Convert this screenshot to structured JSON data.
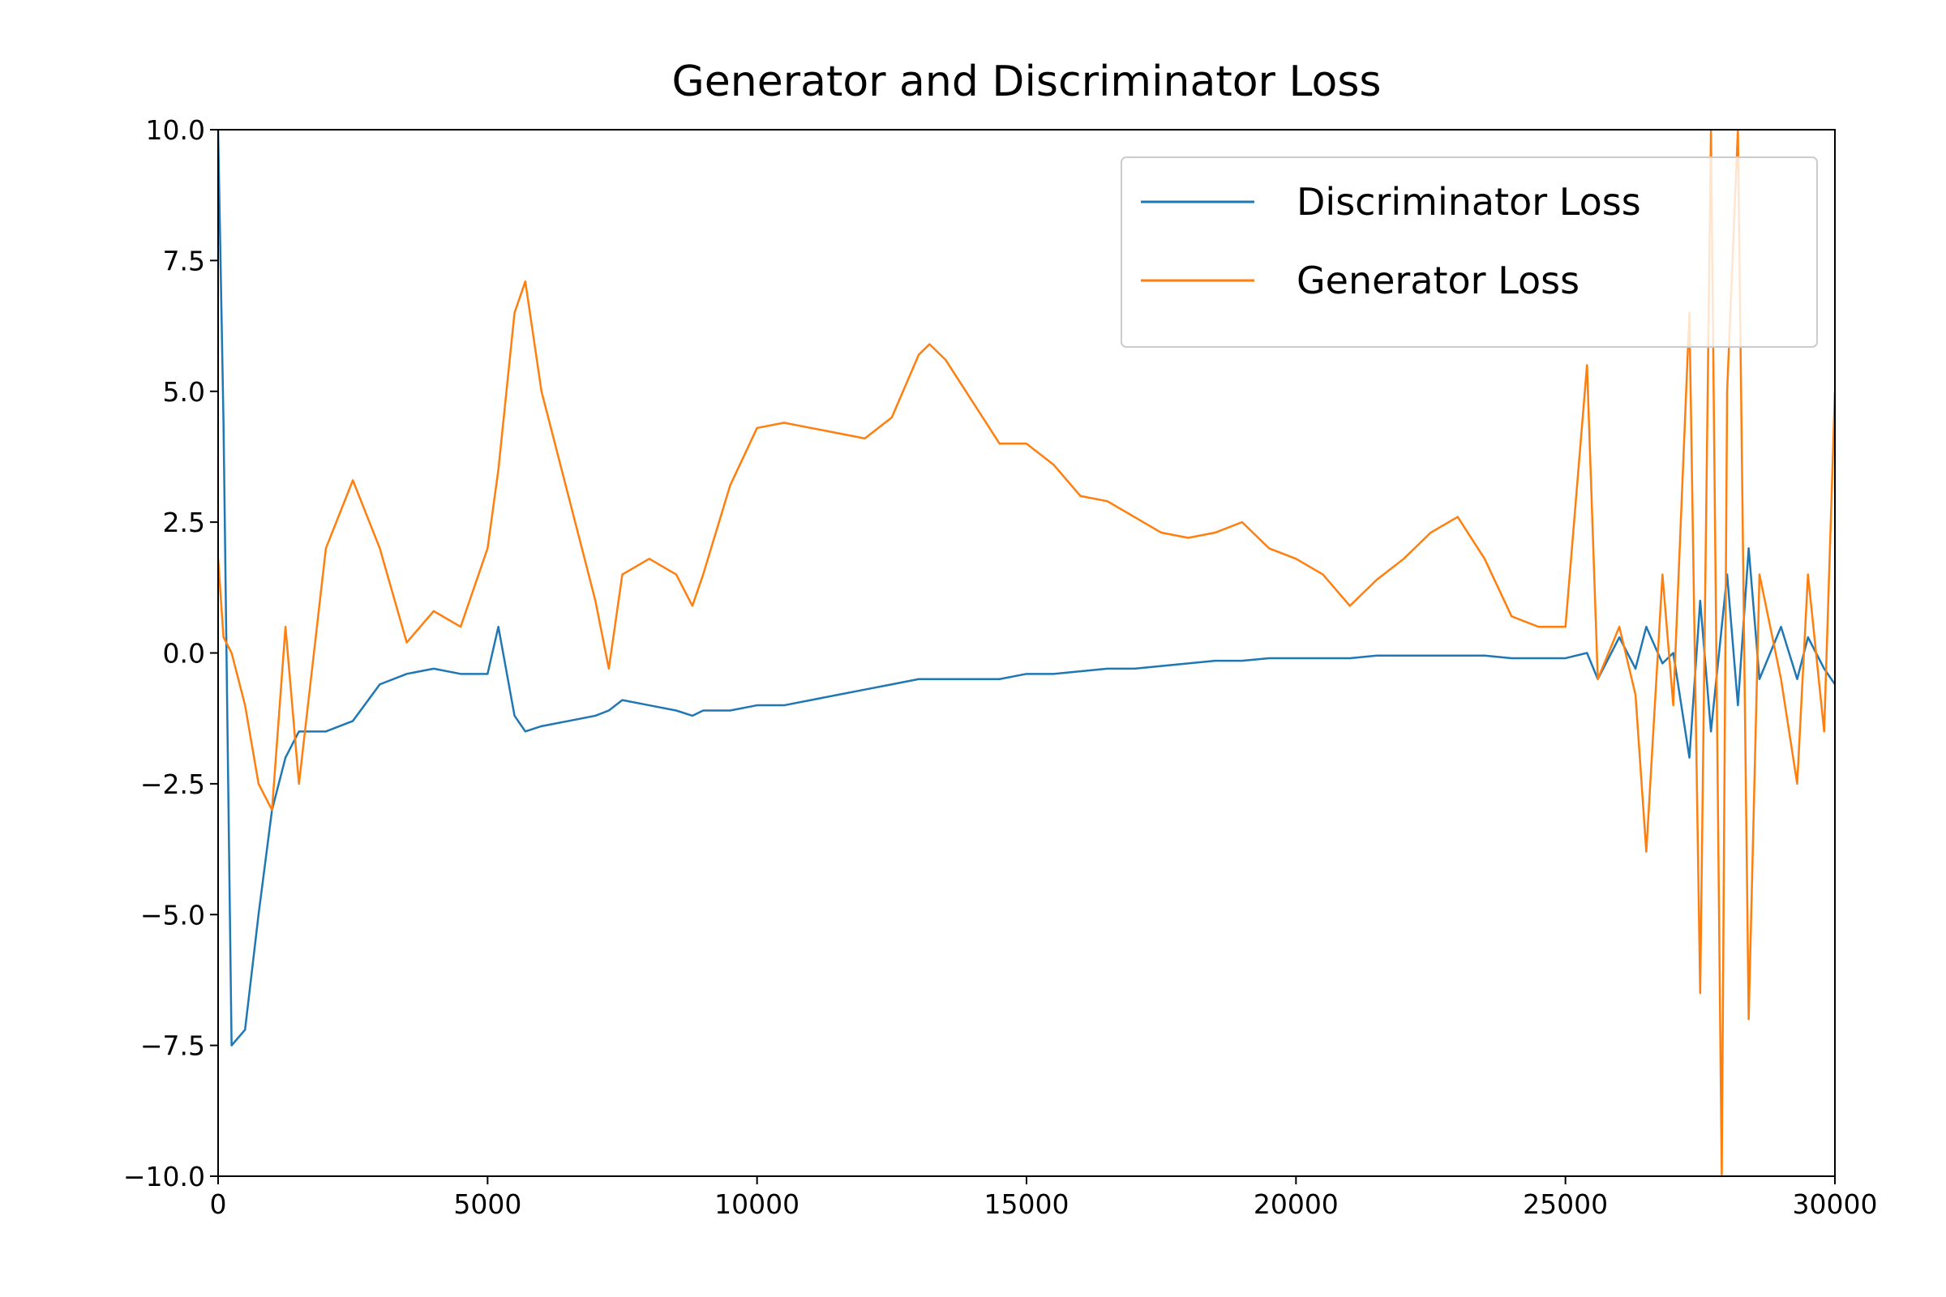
{
  "chart_data": {
    "type": "line",
    "title": "Generator and Discriminator Loss",
    "x": [
      0,
      100,
      250,
      500,
      750,
      1000,
      1250,
      1500,
      2000,
      2500,
      3000,
      3500,
      4000,
      4500,
      5000,
      5200,
      5500,
      5700,
      6000,
      6500,
      7000,
      7250,
      7500,
      8000,
      8500,
      8800,
      9000,
      9500,
      10000,
      10500,
      11000,
      11500,
      12000,
      12500,
      13000,
      13200,
      13500,
      14000,
      14500,
      15000,
      15500,
      16000,
      16500,
      17000,
      17500,
      18000,
      18500,
      19000,
      19500,
      20000,
      20500,
      21000,
      21500,
      22000,
      22500,
      23000,
      23500,
      24000,
      24500,
      25000,
      25400,
      25600,
      26000,
      26300,
      26500,
      26800,
      27000,
      27300,
      27500,
      27700,
      27900,
      28000,
      28200,
      28400,
      28600,
      29000,
      29300,
      29500,
      29800,
      30000
    ],
    "series": [
      {
        "name": "Discriminator Loss",
        "color": "#1f77b4",
        "values": [
          10,
          4.4,
          -7.5,
          -7.2,
          -5,
          -3,
          -2,
          -1.5,
          -1.5,
          -1.3,
          -0.6,
          -0.4,
          -0.3,
          -0.4,
          -0.4,
          0.5,
          -1.2,
          -1.5,
          -1.4,
          -1.3,
          -1.2,
          -1.1,
          -0.9,
          -1.0,
          -1.1,
          -1.2,
          -1.1,
          -1.1,
          -1.0,
          -1.0,
          -0.9,
          -0.8,
          -0.7,
          -0.6,
          -0.5,
          -0.5,
          -0.5,
          -0.5,
          -0.5,
          -0.4,
          -0.4,
          -0.35,
          -0.3,
          -0.3,
          -0.25,
          -0.2,
          -0.15,
          -0.15,
          -0.1,
          -0.1,
          -0.1,
          -0.1,
          -0.05,
          -0.05,
          -0.05,
          -0.05,
          -0.05,
          -0.1,
          -0.1,
          -0.1,
          0.0,
          -0.5,
          0.3,
          -0.3,
          0.5,
          -0.2,
          0.0,
          -2.0,
          1.0,
          -1.5,
          0.5,
          1.5,
          -1.0,
          2.0,
          -0.5,
          0.5,
          -0.5,
          0.3,
          -0.3,
          -0.6
        ]
      },
      {
        "name": "Generator Loss",
        "color": "#ff7f0e",
        "values": [
          1.8,
          0.3,
          0,
          -1,
          -2.5,
          -3,
          0.5,
          -2.5,
          2.0,
          3.3,
          2.0,
          0.2,
          0.8,
          0.5,
          2,
          3.5,
          6.5,
          7.1,
          5,
          3,
          1.0,
          -0.3,
          1.5,
          1.8,
          1.5,
          0.9,
          1.5,
          3.2,
          4.3,
          4.4,
          4.3,
          4.2,
          4.1,
          4.5,
          5.7,
          5.9,
          5.6,
          4.8,
          4.0,
          4.0,
          3.6,
          3.0,
          2.9,
          2.6,
          2.3,
          2.2,
          2.3,
          2.5,
          2.0,
          1.8,
          1.5,
          0.9,
          1.4,
          1.8,
          2.3,
          2.6,
          1.8,
          0.7,
          0.5,
          0.5,
          5.5,
          -0.5,
          0.5,
          -0.8,
          -3.8,
          1.5,
          -1.0,
          6.5,
          -6.5,
          10,
          -10,
          5,
          10,
          -7,
          1.5,
          -0.5,
          -2.5,
          1.5,
          -1.5,
          5.0
        ]
      }
    ],
    "xlim": [
      0,
      30000
    ],
    "xticks": [
      0,
      5000,
      10000,
      15000,
      20000,
      25000,
      30000
    ],
    "ylim": [
      -10,
      10
    ],
    "yticks": [
      {
        "value": -10,
        "label": "−10.0"
      },
      {
        "value": -7.5,
        "label": "−7.5"
      },
      {
        "value": -5,
        "label": "−5.0"
      },
      {
        "value": -2.5,
        "label": "−2.5"
      },
      {
        "value": 0,
        "label": "0.0"
      },
      {
        "value": 2.5,
        "label": "2.5"
      },
      {
        "value": 5,
        "label": "5.0"
      },
      {
        "value": 7.5,
        "label": "7.5"
      },
      {
        "value": 10,
        "label": "10.0"
      }
    ],
    "legend": "upper right"
  }
}
